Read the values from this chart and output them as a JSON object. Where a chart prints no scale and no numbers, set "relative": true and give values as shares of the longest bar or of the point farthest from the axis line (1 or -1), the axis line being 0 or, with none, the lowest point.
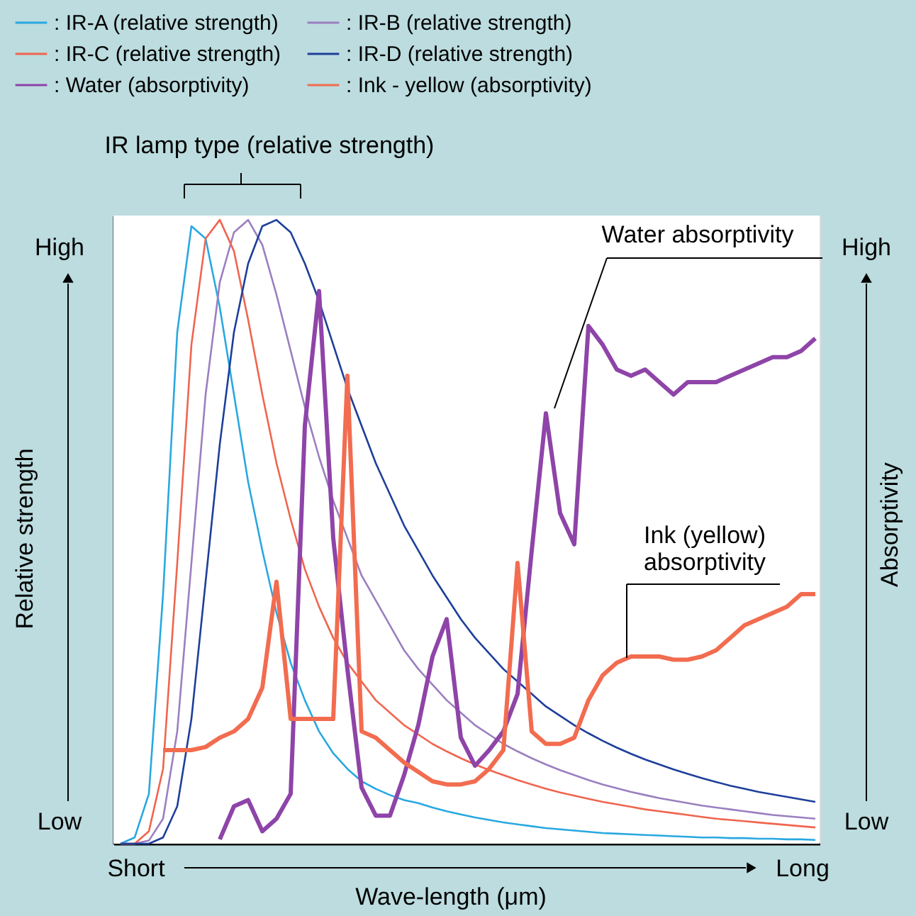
{
  "chart_data": {
    "type": "line",
    "relative": true,
    "legend": "top",
    "marker": "none",
    "line_style": "solid",
    "xlabel": "Wave-length (μm)",
    "ylabel": "Relative strength",
    "y2label": "Absorptivity",
    "annotations": [
      "IR lamp type (relative strength)",
      "Water absorptivity",
      "Ink (yellow)\nabsorptivity",
      "High",
      "Low",
      "High",
      "Low",
      "Short",
      "Long"
    ],
    "categories": [
      null,
      null,
      null,
      null,
      null,
      null,
      null,
      null,
      null,
      null,
      null,
      null,
      null,
      null,
      null,
      null,
      null,
      null,
      null,
      null,
      null,
      null,
      null,
      null,
      null,
      null,
      null,
      null,
      null,
      null,
      null,
      null,
      null,
      null,
      null,
      null,
      null,
      null,
      null,
      null,
      null,
      null,
      null,
      null,
      null,
      null,
      null,
      null,
      null,
      null
    ],
    "series": [
      {
        "name": ": IR-A (relative strength)",
        "color": "#29a8e0",
        "values": [
          0,
          0.01,
          0.08,
          0.4,
          0.82,
          0.99,
          0.97,
          0.86,
          0.72,
          0.58,
          0.47,
          0.37,
          0.29,
          0.23,
          0.18,
          0.145,
          0.12,
          0.1,
          0.088,
          0.078,
          0.07,
          0.065,
          0.058,
          0.052,
          0.047,
          0.042,
          0.038,
          0.034,
          0.031,
          0.028,
          0.025,
          0.023,
          0.021,
          0.019,
          0.017,
          0.016,
          0.015,
          0.014,
          0.013,
          0.012,
          0.011,
          0.01,
          0.01,
          0.009,
          0.009,
          0.008,
          0.008,
          0.007,
          0.007,
          0.006
        ]
      },
      {
        "name": ": IR-B (relative strength)",
        "color": "#9b7fc0",
        "values": [
          0,
          0,
          0.005,
          0.04,
          0.18,
          0.45,
          0.72,
          0.9,
          0.98,
          1.0,
          0.96,
          0.88,
          0.79,
          0.7,
          0.62,
          0.55,
          0.49,
          0.43,
          0.39,
          0.35,
          0.31,
          0.28,
          0.255,
          0.23,
          0.21,
          0.19,
          0.175,
          0.16,
          0.148,
          0.137,
          0.127,
          0.118,
          0.11,
          0.102,
          0.095,
          0.089,
          0.083,
          0.078,
          0.073,
          0.069,
          0.065,
          0.061,
          0.058,
          0.055,
          0.052,
          0.049,
          0.046,
          0.044,
          0.042,
          0.04
        ]
      },
      {
        "name": ": IR-C (relative strength)",
        "color": "#f0654f",
        "values": [
          0,
          0,
          0.02,
          0.12,
          0.45,
          0.8,
          0.97,
          1.0,
          0.95,
          0.84,
          0.72,
          0.61,
          0.52,
          0.44,
          0.38,
          0.33,
          0.29,
          0.26,
          0.23,
          0.21,
          0.19,
          0.175,
          0.16,
          0.148,
          0.137,
          0.127,
          0.118,
          0.11,
          0.102,
          0.095,
          0.088,
          0.082,
          0.077,
          0.072,
          0.067,
          0.063,
          0.059,
          0.055,
          0.052,
          0.049,
          0.046,
          0.043,
          0.04,
          0.038,
          0.036,
          0.034,
          0.032,
          0.03,
          0.028,
          0.026
        ]
      },
      {
        "name": ": IR-D (relative strength)",
        "color": "#1e3f9a",
        "values": [
          0,
          0,
          0,
          0.01,
          0.06,
          0.2,
          0.42,
          0.64,
          0.82,
          0.93,
          0.99,
          1.0,
          0.98,
          0.93,
          0.87,
          0.8,
          0.73,
          0.67,
          0.61,
          0.56,
          0.51,
          0.47,
          0.43,
          0.395,
          0.36,
          0.33,
          0.305,
          0.28,
          0.26,
          0.24,
          0.22,
          0.205,
          0.19,
          0.177,
          0.165,
          0.154,
          0.144,
          0.135,
          0.127,
          0.119,
          0.112,
          0.105,
          0.099,
          0.093,
          0.088,
          0.083,
          0.079,
          0.075,
          0.071,
          0.067
        ]
      },
      {
        "name": ": Water (absorptivity)",
        "color": "#8e44a8",
        "values": [
          null,
          null,
          null,
          null,
          null,
          null,
          null,
          0.007,
          0.06,
          0.07,
          0.02,
          0.04,
          0.08,
          0.67,
          0.886,
          0.49,
          0.28,
          0.09,
          0.045,
          0.045,
          0.11,
          0.19,
          0.3,
          0.36,
          0.17,
          0.125,
          0.15,
          0.18,
          0.24,
          0.47,
          0.69,
          0.53,
          0.48,
          0.83,
          0.8,
          0.76,
          0.75,
          0.76,
          0.74,
          0.72,
          0.74,
          0.74,
          0.74,
          0.75,
          0.76,
          0.77,
          0.78,
          0.78,
          0.79,
          0.81
        ]
      },
      {
        "name": ": Ink - yellow (absorptivity)",
        "color": "#f26c4f",
        "values": [
          null,
          null,
          null,
          0.15,
          0.15,
          0.15,
          0.155,
          0.17,
          0.18,
          0.2,
          0.25,
          0.42,
          0.2,
          0.2,
          0.2,
          0.2,
          0.75,
          0.18,
          0.17,
          0.15,
          0.13,
          0.115,
          0.1,
          0.095,
          0.095,
          0.1,
          0.12,
          0.15,
          0.45,
          0.18,
          0.16,
          0.16,
          0.17,
          0.23,
          0.27,
          0.29,
          0.3,
          0.3,
          0.3,
          0.295,
          0.295,
          0.3,
          0.31,
          0.33,
          0.35,
          0.36,
          0.37,
          0.38,
          0.4,
          0.4
        ]
      }
    ]
  }
}
